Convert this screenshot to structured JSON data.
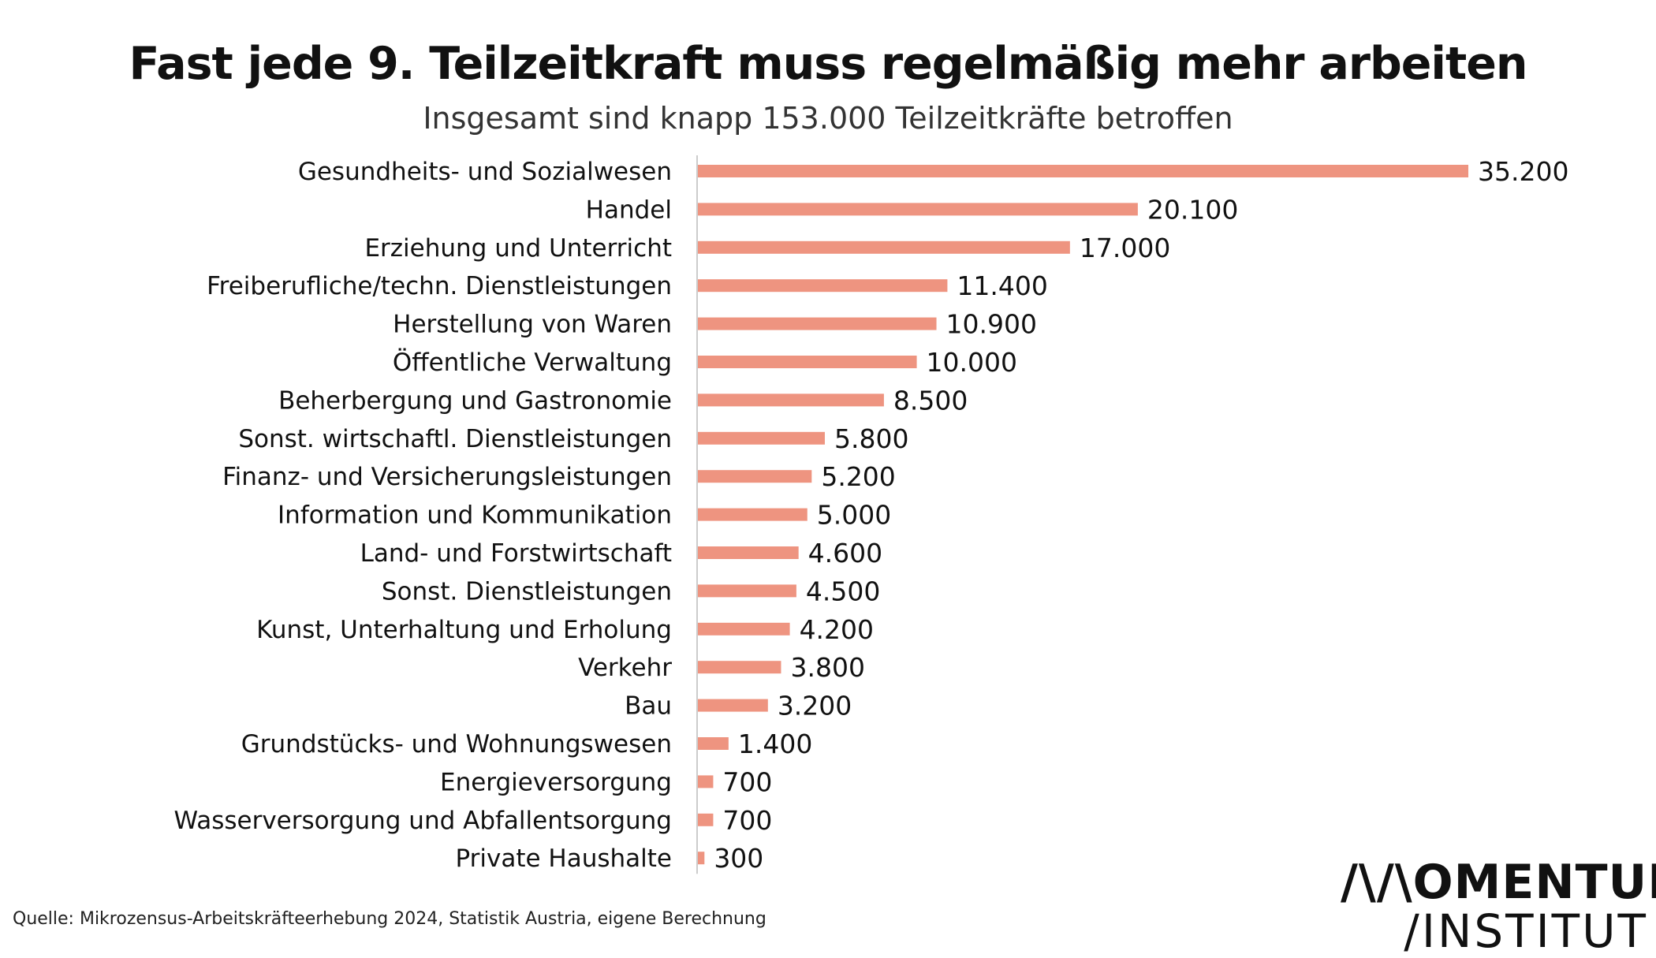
{
  "header": {
    "title": "Fast jede 9. Teilzeitkraft muss regelmäßig mehr arbeiten",
    "subtitle": "Insgesamt sind knapp 153.000 Teilzeitkräfte betroffen"
  },
  "footer": {
    "source": "Quelle: Mikrozensus-Arbeitskräfteerhebung 2024, Statistik Austria, eigene Berechnung"
  },
  "logo": {
    "line1": "/\\/\\OMENTUM",
    "line2": "/INSTITUT"
  },
  "colors": {
    "bar": "#ee9480",
    "axis": "#cccccc"
  },
  "chart_data": {
    "type": "bar",
    "orientation": "horizontal",
    "title": "Fast jede 9. Teilzeitkraft muss regelmäßig mehr arbeiten",
    "subtitle": "Insgesamt sind knapp 153.000 Teilzeitkräfte betroffen",
    "categories": [
      "Gesundheits- und Sozialwesen",
      "Handel",
      "Erziehung und Unterricht",
      "Freiberufliche/techn. Dienstleistungen",
      "Herstellung von Waren",
      "Öffentliche Verwaltung",
      "Beherbergung und Gastronomie",
      "Sonst. wirtschaftl. Dienstleistungen",
      "Finanz- und Versicherungsleistungen",
      "Information und Kommunikation",
      "Land- und Forstwirtschaft",
      "Sonst. Dienstleistungen",
      "Kunst, Unterhaltung und Erholung",
      "Verkehr",
      "Bau",
      "Grundstücks- und Wohnungswesen",
      "Energieversorgung",
      "Wasserversorgung und Abfallentsorgung",
      "Private Haushalte"
    ],
    "values": [
      35200,
      20100,
      17000,
      11400,
      10900,
      10000,
      8500,
      5800,
      5200,
      5000,
      4600,
      4500,
      4200,
      3800,
      3200,
      1400,
      700,
      700,
      300
    ],
    "value_labels": [
      "35.200",
      "20.100",
      "17.000",
      "11.400",
      "10.900",
      "10.000",
      "8.500",
      "5.800",
      "5.200",
      "5.000",
      "4.600",
      "4.500",
      "4.200",
      "3.800",
      "3.200",
      "1.400",
      "700",
      "700",
      "300"
    ],
    "xlim": [
      0,
      35200
    ],
    "grid": false,
    "legend": "none"
  }
}
